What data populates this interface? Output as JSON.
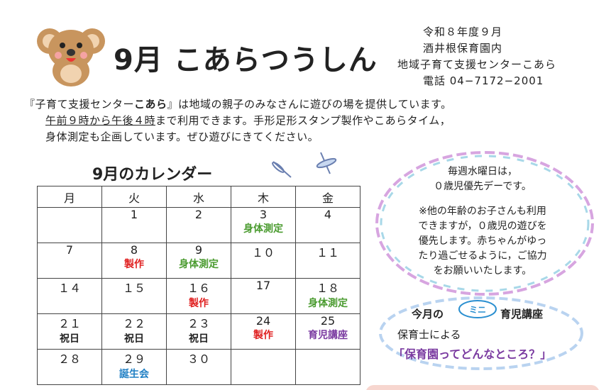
{
  "header": {
    "title": "9月 こあらつうしん",
    "info": [
      "令和８年度９月",
      "酒井根保育園内",
      "地域子育て支援センターこあら",
      "電話 04−7172−2001"
    ]
  },
  "intro": {
    "line1": [
      "『子育て支援センター",
      "こあら",
      "』は地域の親子のみなさんに遊びの場を提供しています。"
    ],
    "line2": [
      "午前９時から午後４時",
      "まで利用できます。手形足形スタンプ製作やこあらタイム，"
    ],
    "line3": "身体測定も企画しています。ぜひ遊びにきてください。"
  },
  "calendar": {
    "title": "9月のカレンダー",
    "headers": [
      "月",
      "火",
      "水",
      "木",
      "金"
    ],
    "rows": [
      [
        null,
        {
          "day": "1"
        },
        {
          "day": "2"
        },
        {
          "day": "3",
          "event": "身体測定",
          "color": "#4a9b2f"
        },
        {
          "day": "4"
        }
      ],
      [
        {
          "day": "7"
        },
        {
          "day": "8",
          "event": "製作",
          "color": "#e02020"
        },
        {
          "day": "9",
          "event": "身体測定",
          "color": "#4a9b2f"
        },
        {
          "day": "１０"
        },
        {
          "day": "１１"
        }
      ],
      [
        {
          "day": "１４"
        },
        {
          "day": "１５"
        },
        {
          "day": "１６",
          "event": "製作",
          "color": "#e02020"
        },
        {
          "day": "17"
        },
        {
          "day": "１８",
          "event": "身体測定",
          "color": "#4a9b2f"
        }
      ],
      [
        {
          "day": "２１",
          "event": "祝日",
          "color": "#222222"
        },
        {
          "day": "２２",
          "event": "祝日",
          "color": "#222222"
        },
        {
          "day": "２３",
          "event": "祝日",
          "color": "#222222"
        },
        {
          "day": "24",
          "event": "製作",
          "color": "#e02020"
        },
        {
          "day": "25",
          "event": "育児講座",
          "color": "#7a3aa0"
        }
      ],
      [
        {
          "day": "２８"
        },
        {
          "day": "２９",
          "event": "誕生会",
          "color": "#1f7fc4"
        },
        {
          "day": "３０"
        },
        null,
        null
      ]
    ]
  },
  "notice": {
    "lead": [
      "毎週水曜日は，",
      "０歳児優先デーです。"
    ],
    "body": [
      "※他の年齢のお子さんも利用",
      "できますが，０歳児の遊びを",
      "優先します。赤ちゃんがゆっ",
      "たり過ごせるように，ご協力",
      "をお願いいたします。"
    ]
  },
  "lecture": {
    "prefix": "今月の",
    "badge": "ミニ",
    "title": "育児講座",
    "by": "保育士による",
    "topic": "「保育園ってどんなところ？」"
  }
}
